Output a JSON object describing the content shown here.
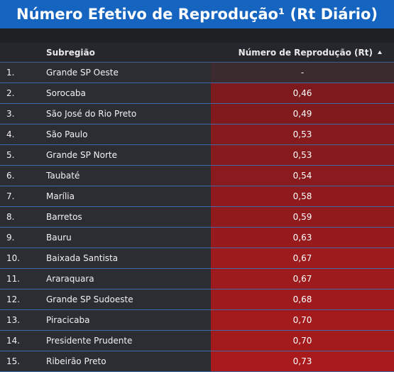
{
  "header": {
    "title": "Número Efetivo de Reprodução¹ (Rt Diário)"
  },
  "table": {
    "columns": {
      "name": "Subregião",
      "value": "Número de Reprodução (Rt)"
    },
    "sort": "ascending",
    "rows": [
      {
        "idx": "1.",
        "name": "Grande SP Oeste",
        "value": "-",
        "color": "#3b2a2e"
      },
      {
        "idx": "2.",
        "name": "Sorocaba",
        "value": "0,46",
        "color": "#7d1a1d"
      },
      {
        "idx": "3.",
        "name": "São José do Rio Preto",
        "value": "0,49",
        "color": "#811a1d"
      },
      {
        "idx": "4.",
        "name": "São Paulo",
        "value": "0,53",
        "color": "#871a1d"
      },
      {
        "idx": "5.",
        "name": "Grande SP Norte",
        "value": "0,53",
        "color": "#871a1d"
      },
      {
        "idx": "6.",
        "name": "Taubaté",
        "value": "0,54",
        "color": "#891a1d"
      },
      {
        "idx": "7.",
        "name": "Marília",
        "value": "0,58",
        "color": "#8f1a1d"
      },
      {
        "idx": "8.",
        "name": "Barretos",
        "value": "0,59",
        "color": "#911a1d"
      },
      {
        "idx": "9.",
        "name": "Bauru",
        "value": "0,63",
        "color": "#971a1d"
      },
      {
        "idx": "10.",
        "name": "Baixada Santista",
        "value": "0,67",
        "color": "#9d1a1d"
      },
      {
        "idx": "11.",
        "name": "Araraquara",
        "value": "0,67",
        "color": "#9d1a1d"
      },
      {
        "idx": "12.",
        "name": "Grande SP Sudoeste",
        "value": "0,68",
        "color": "#9f1a1d"
      },
      {
        "idx": "13.",
        "name": "Piracicaba",
        "value": "0,70",
        "color": "#a31a1d"
      },
      {
        "idx": "14.",
        "name": "Presidente Prudente",
        "value": "0,70",
        "color": "#a31a1d"
      },
      {
        "idx": "15.",
        "name": "Ribeirão Preto",
        "value": "0,73",
        "color": "#a91a1d"
      }
    ]
  },
  "colors": {
    "header_bg": "#1565c0",
    "table_bg": "#2b2d33",
    "row_border": "#3d6aa8"
  }
}
